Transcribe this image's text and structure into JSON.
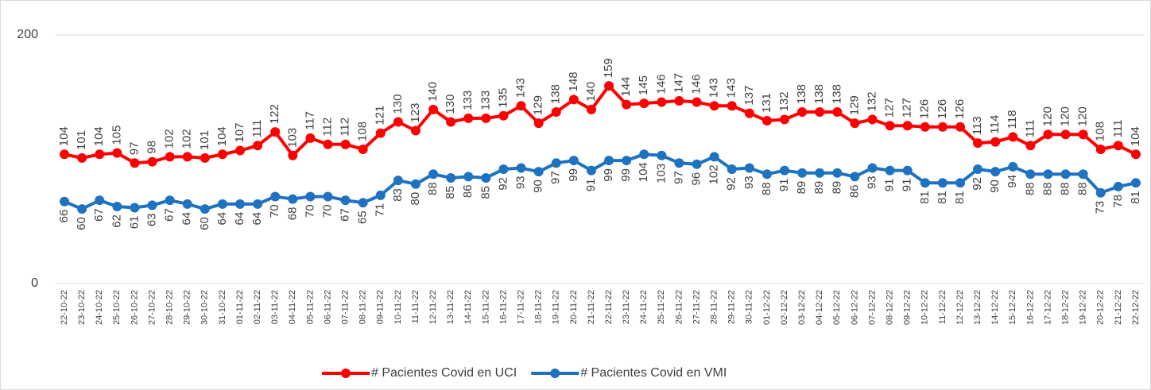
{
  "chart_data": {
    "type": "line",
    "categories": [
      "22-10-22",
      "23-10-22",
      "24-10-22",
      "25-10-22",
      "26-10-22",
      "27-10-22",
      "28-10-22",
      "29-10-22",
      "30-10-22",
      "31-10-22",
      "01-11-22",
      "02-11-22",
      "03-11-22",
      "04-11-22",
      "05-11-22",
      "06-11-22",
      "07-11-22",
      "08-11-22",
      "09-11-22",
      "10-11-22",
      "11-11-22",
      "12-11-22",
      "13-11-22",
      "14-11-22",
      "15-11-22",
      "16-11-22",
      "17-11-22",
      "18-11-22",
      "19-11-22",
      "20-11-22",
      "21-11-22",
      "22-11-22",
      "23-11-22",
      "24-11-22",
      "25-11-22",
      "26-11-22",
      "27-11-22",
      "28-11-22",
      "29-11-22",
      "30-11-22",
      "01-12-22",
      "02-12-22",
      "03-12-22",
      "04-12-22",
      "05-12-22",
      "06-12-22",
      "07-12-22",
      "08-12-22",
      "09-12-22",
      "10-12-22",
      "11-12-22",
      "12-12-22",
      "13-12-22",
      "14-12-22",
      "15-12-22",
      "16-12-22",
      "17-12-22",
      "18-12-22",
      "19-12-22",
      "20-12-22",
      "21-12-22",
      "22-12-22"
    ],
    "series": [
      {
        "name": "# Pacientes Covid en UCI",
        "color": "#ff0000",
        "label_side": "above",
        "values": [
          104,
          101,
          104,
          105,
          97,
          98,
          102,
          102,
          101,
          104,
          107,
          111,
          122,
          103,
          117,
          112,
          112,
          108,
          121,
          130,
          123,
          140,
          130,
          133,
          133,
          135,
          143,
          129,
          138,
          148,
          140,
          159,
          144,
          145,
          146,
          147,
          146,
          143,
          143,
          137,
          131,
          132,
          138,
          138,
          138,
          129,
          132,
          127,
          127,
          126,
          126,
          126,
          113,
          114,
          118,
          111,
          120,
          120,
          120,
          108,
          111,
          104
        ]
      },
      {
        "name": "# Pacientes Covid en VMI",
        "color": "#1f72c0",
        "label_side": "below",
        "values": [
          66,
          60,
          67,
          62,
          61,
          63,
          67,
          64,
          60,
          64,
          64,
          64,
          70,
          68,
          70,
          70,
          67,
          65,
          71,
          83,
          80,
          88,
          85,
          86,
          85,
          92,
          93,
          90,
          97,
          99,
          91,
          99,
          99,
          104,
          103,
          97,
          96,
          102,
          92,
          93,
          88,
          91,
          89,
          89,
          89,
          86,
          93,
          91,
          91,
          81,
          81,
          81,
          92,
          90,
          94,
          88,
          88,
          88,
          88,
          73,
          78,
          81
        ]
      }
    ],
    "ylim": [
      0,
      200
    ],
    "yticks": [
      0,
      200
    ],
    "grid": true,
    "legend": "bottom"
  }
}
